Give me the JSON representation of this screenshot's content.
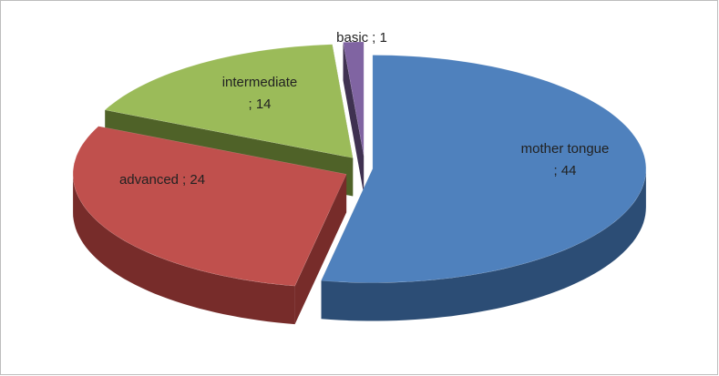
{
  "chart_data": {
    "type": "pie3d",
    "categories": [
      "mother tongue",
      "advanced",
      "intermediate",
      "basic"
    ],
    "values": [
      44,
      24,
      14,
      1
    ],
    "value_labels": [
      "; 44",
      "; 24",
      "; 14",
      "; 1"
    ],
    "colors": [
      "#4f81bd",
      "#c0504d",
      "#9bbb59",
      "#8064a2"
    ],
    "side_colors": [
      "#2c4d75",
      "#772c2a",
      "#4f6228",
      "#3f3151"
    ]
  }
}
